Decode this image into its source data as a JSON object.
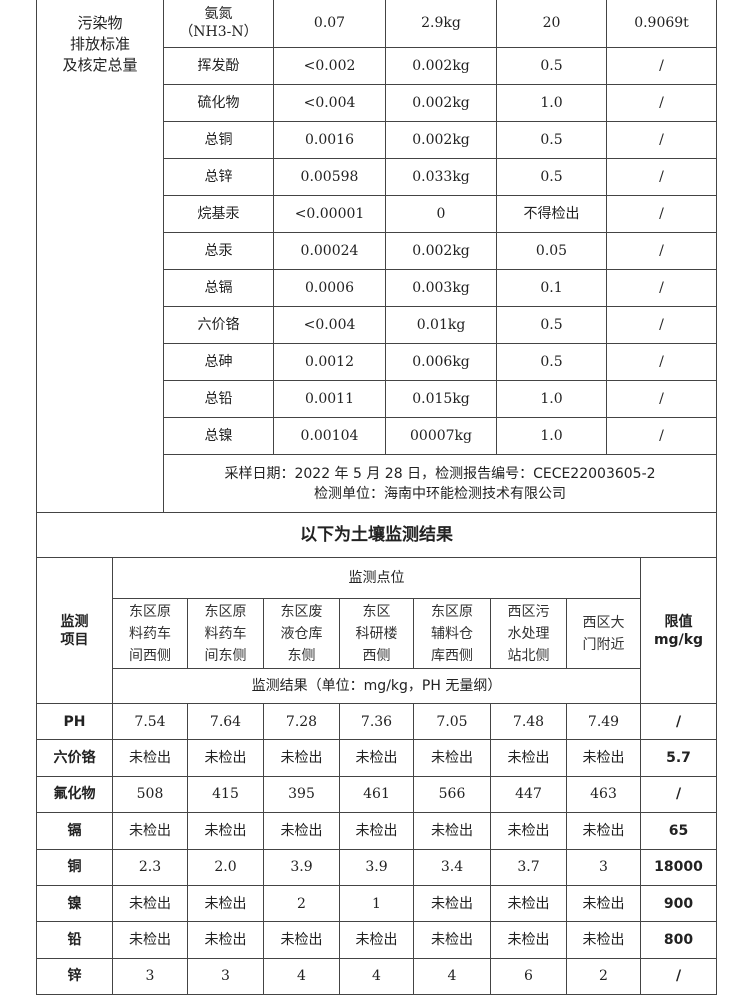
{
  "section1": {
    "left_label": "污染物\n排放标准\n及核定总量",
    "rows": [
      [
        "氨氮\n（NH3-N）",
        "0.07",
        "2.9kg",
        "20",
        "0.9069t"
      ],
      [
        "挥发酚",
        "<0.002",
        "0.002kg",
        "0.5",
        "/"
      ],
      [
        "硫化物",
        "<0.004",
        "0.002kg",
        "1.0",
        "/"
      ],
      [
        "总铜",
        "0.0016",
        "0.002kg",
        "0.5",
        "/"
      ],
      [
        "总锌",
        "0.00598",
        "0.033kg",
        "0.5",
        "/"
      ],
      [
        "烷基汞",
        "<0.00001",
        "0",
        "不得检出",
        "/"
      ],
      [
        "总汞",
        "0.00024",
        "0.002kg",
        "0.05",
        "/"
      ],
      [
        "总镉",
        "0.0006",
        "0.003kg",
        "0.1",
        "/"
      ],
      [
        "六价铬",
        "<0.004",
        "0.01kg",
        "0.5",
        "/"
      ],
      [
        "总砷",
        "0.0012",
        "0.006kg",
        "0.5",
        "/"
      ],
      [
        "总铅",
        "0.0011",
        "0.015kg",
        "1.0",
        "/"
      ],
      [
        "总镍",
        "0.00104",
        "00007kg",
        "1.0",
        "/"
      ]
    ],
    "footer_line1": "采样日期：2022 年 5 月 28 日，检测报告编号：CECE22003605-2",
    "footer_line2": "检测单位：海南中环能检测技术有限公司"
  },
  "section2": {
    "title": "以下为土壤监测结果",
    "item_header": "监测\n项目",
    "sites_header": "监测点位",
    "limit_header": "限值\nmg/kg",
    "sites": [
      "东区原\n料药车\n间西侧",
      "东区原\n料药车\n间东侧",
      "东区废\n液仓库\n东侧",
      "东区\n科研楼\n西侧",
      "东区原\n辅料仓\n库西侧",
      "西区污\n水处理\n站北侧",
      "西区大\n门附近"
    ],
    "result_header": "监测结果（单位：mg/kg，PH 无量纲）",
    "rows": [
      {
        "item": "PH",
        "values": [
          "7.54",
          "7.64",
          "7.28",
          "7.36",
          "7.05",
          "7.48",
          "7.49"
        ],
        "limit": "/"
      },
      {
        "item": "六价铬",
        "values": [
          "未检出",
          "未检出",
          "未检出",
          "未检出",
          "未检出",
          "未检出",
          "未检出"
        ],
        "limit": "5.7"
      },
      {
        "item": "氟化物",
        "values": [
          "508",
          "415",
          "395",
          "461",
          "566",
          "447",
          "463"
        ],
        "limit": "/"
      },
      {
        "item": "镉",
        "values": [
          "未检出",
          "未检出",
          "未检出",
          "未检出",
          "未检出",
          "未检出",
          "未检出"
        ],
        "limit": "65"
      },
      {
        "item": "铜",
        "values": [
          "2.3",
          "2.0",
          "3.9",
          "3.9",
          "3.4",
          "3.7",
          "3"
        ],
        "limit": "18000"
      },
      {
        "item": "镍",
        "values": [
          "未检出",
          "未检出",
          "2",
          "1",
          "未检出",
          "未检出",
          "未检出"
        ],
        "limit": "900"
      },
      {
        "item": "铅",
        "values": [
          "未检出",
          "未检出",
          "未检出",
          "未检出",
          "未检出",
          "未检出",
          "未检出"
        ],
        "limit": "800"
      },
      {
        "item": "锌",
        "values": [
          "3",
          "3",
          "4",
          "4",
          "4",
          "6",
          "2"
        ],
        "limit": "/"
      }
    ]
  }
}
